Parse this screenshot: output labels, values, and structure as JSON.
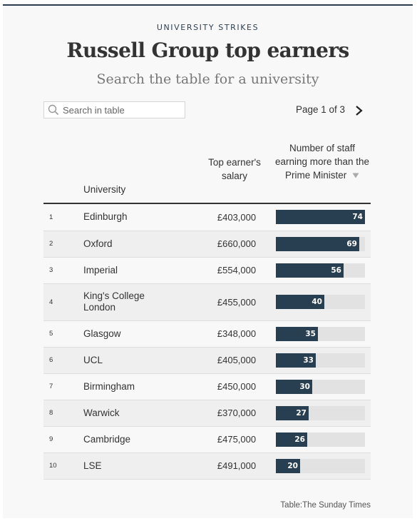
{
  "header": {
    "kicker": "UNIVERSITY STRIKES",
    "title": "Russell Group top earners",
    "subtitle": "Search the table for a university"
  },
  "search": {
    "placeholder": "Search in table",
    "value": ""
  },
  "pagination": {
    "label": "Page 1 of 3"
  },
  "columns": {
    "university": "University",
    "salary": "Top earner's salary",
    "count": "Number of staff earning more than the Prime Minister"
  },
  "colors": {
    "bar": "#283e51",
    "track": "#e2e2e2"
  },
  "source": "Table:The Sunday Times",
  "chart_data": {
    "type": "table",
    "sort": {
      "column": "count",
      "direction": "descending"
    },
    "bar_max": 74,
    "rows": [
      {
        "rank": "1",
        "university": "Edinburgh",
        "salary": "£403,000",
        "count": 74
      },
      {
        "rank": "2",
        "university": "Oxford",
        "salary": "£660,000",
        "count": 69
      },
      {
        "rank": "3",
        "university": "Imperial",
        "salary": "£554,000",
        "count": 56
      },
      {
        "rank": "4",
        "university": "King's College London",
        "salary": "£455,000",
        "count": 40
      },
      {
        "rank": "5",
        "university": "Glasgow",
        "salary": "£348,000",
        "count": 35
      },
      {
        "rank": "6",
        "university": "UCL",
        "salary": "£405,000",
        "count": 33
      },
      {
        "rank": "7",
        "university": "Birmingham",
        "salary": "£450,000",
        "count": 30
      },
      {
        "rank": "8",
        "university": "Warwick",
        "salary": "£370,000",
        "count": 27
      },
      {
        "rank": "9",
        "university": "Cambridge",
        "salary": "£475,000",
        "count": 26
      },
      {
        "rank": "10",
        "university": "LSE",
        "salary": "£491,000",
        "count": 20
      }
    ]
  }
}
